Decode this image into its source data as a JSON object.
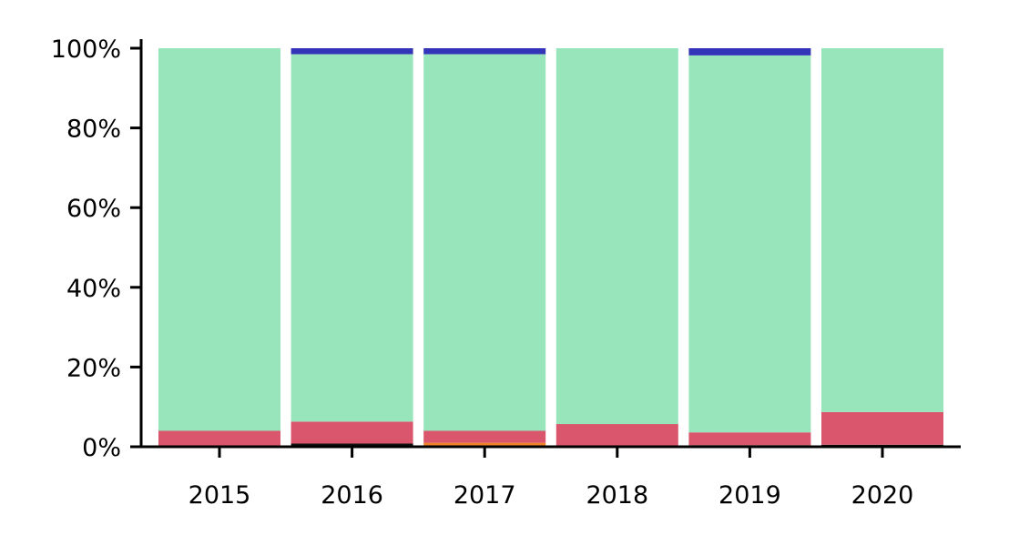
{
  "chart_data": {
    "type": "bar",
    "stacked": true,
    "normalized": true,
    "title": "",
    "xlabel": "",
    "ylabel": "",
    "ylim": [
      0,
      100
    ],
    "yticks": [
      "0%",
      "20%",
      "40%",
      "60%",
      "80%",
      "100%"
    ],
    "categories": [
      "2015",
      "2016",
      "2017",
      "2018",
      "2019",
      "2020"
    ],
    "grid": false,
    "legend": "none",
    "series": [
      {
        "color": "#111111",
        "values": [
          0.0,
          0.8,
          0.0,
          0.2,
          0.4,
          0.5
        ]
      },
      {
        "color": "#F0832A",
        "values": [
          0.0,
          0.0,
          1.0,
          0.0,
          0.0,
          0.0
        ]
      },
      {
        "color": "#D9566C",
        "values": [
          4.0,
          5.5,
          3.0,
          5.5,
          3.2,
          8.2
        ]
      },
      {
        "color": "#98E5BC",
        "values": [
          96.0,
          92.2,
          94.5,
          94.3,
          94.6,
          91.3
        ]
      },
      {
        "color": "#3434B8",
        "values": [
          0.0,
          1.5,
          1.5,
          0.0,
          1.8,
          0.0
        ]
      }
    ]
  }
}
